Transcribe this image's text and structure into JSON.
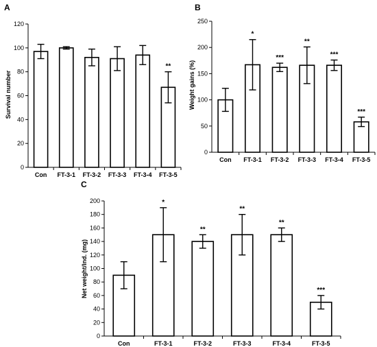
{
  "chart_data": [
    {
      "panel": "A",
      "type": "bar",
      "categories": [
        "Con",
        "FT-3-1",
        "FT-3-2",
        "FT-3-3",
        "FT-3-4",
        "FT-3-5"
      ],
      "values": [
        97,
        100,
        92,
        91,
        94,
        67
      ],
      "errors": [
        6,
        1,
        7,
        10,
        8,
        13
      ],
      "significance": [
        "",
        "",
        "",
        "",
        "",
        "**"
      ],
      "ylabel": "Survival number",
      "xlabel": "",
      "ylim": [
        0,
        120
      ],
      "yticks": [
        0,
        20,
        40,
        60,
        80,
        100,
        120
      ],
      "grid": false,
      "legend": "none"
    },
    {
      "panel": "B",
      "type": "bar",
      "categories": [
        "Con",
        "FT-3-1",
        "FT-3-2",
        "FT-3-3",
        "FT-3-4",
        "FT-3-5"
      ],
      "values": [
        100,
        167,
        162,
        166,
        166,
        58
      ],
      "errors": [
        22,
        48,
        8,
        35,
        10,
        9
      ],
      "significance": [
        "",
        "*",
        "***",
        "**",
        "***",
        "***"
      ],
      "ylabel": "Weight gains (%)",
      "xlabel": "",
      "ylim": [
        0,
        250
      ],
      "yticks": [
        0,
        50,
        100,
        150,
        200,
        250
      ],
      "grid": false,
      "legend": "none"
    },
    {
      "panel": "C",
      "type": "bar",
      "categories": [
        "Con",
        "FT-3-1",
        "FT-3-2",
        "FT-3-3",
        "FT-3-4",
        "FT-3-5"
      ],
      "values": [
        90,
        150,
        140,
        150,
        150,
        50
      ],
      "errors": [
        20,
        40,
        10,
        30,
        10,
        10
      ],
      "significance": [
        "",
        "*",
        "**",
        "**",
        "**",
        "***"
      ],
      "ylabel": "Net weight/Ind. (mg)",
      "xlabel": "",
      "ylim": [
        0,
        200
      ],
      "yticks": [
        0,
        20,
        40,
        60,
        80,
        100,
        120,
        140,
        160,
        180,
        200
      ],
      "grid": false,
      "legend": "none"
    }
  ]
}
